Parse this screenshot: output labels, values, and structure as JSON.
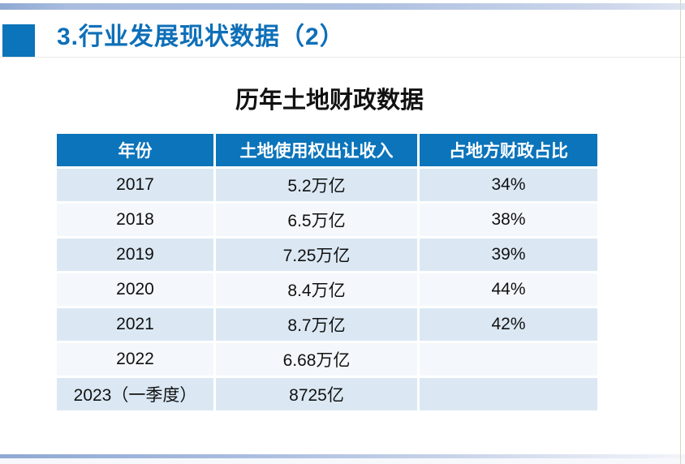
{
  "slide": {
    "heading": "3.行业发展现状数据（2）",
    "table_title": "历年土地财政数据"
  },
  "chart_data": {
    "type": "table",
    "title": "历年土地财政数据",
    "columns": [
      "年份",
      "土地使用权出让收入",
      "占地方财政占比"
    ],
    "rows": [
      [
        "2017",
        "5.2万亿",
        "34%"
      ],
      [
        "2018",
        "6.5万亿",
        "38%"
      ],
      [
        "2019",
        "7.25万亿",
        "39%"
      ],
      [
        "2020",
        "8.4万亿",
        "44%"
      ],
      [
        "2021",
        "8.7万亿",
        "42%"
      ],
      [
        "2022",
        "6.68万亿",
        ""
      ],
      [
        "2023（一季度）",
        "8725亿",
        ""
      ]
    ]
  },
  "colors": {
    "accent_blue": "#0b74ba",
    "heading_blue": "#0e6fb8",
    "row_odd": "#dbe8f4",
    "row_even": "#f4f8fc",
    "topbar_left": "#8fa9d3",
    "topbar_right": "#dde4f1",
    "text_black": "#111111"
  }
}
